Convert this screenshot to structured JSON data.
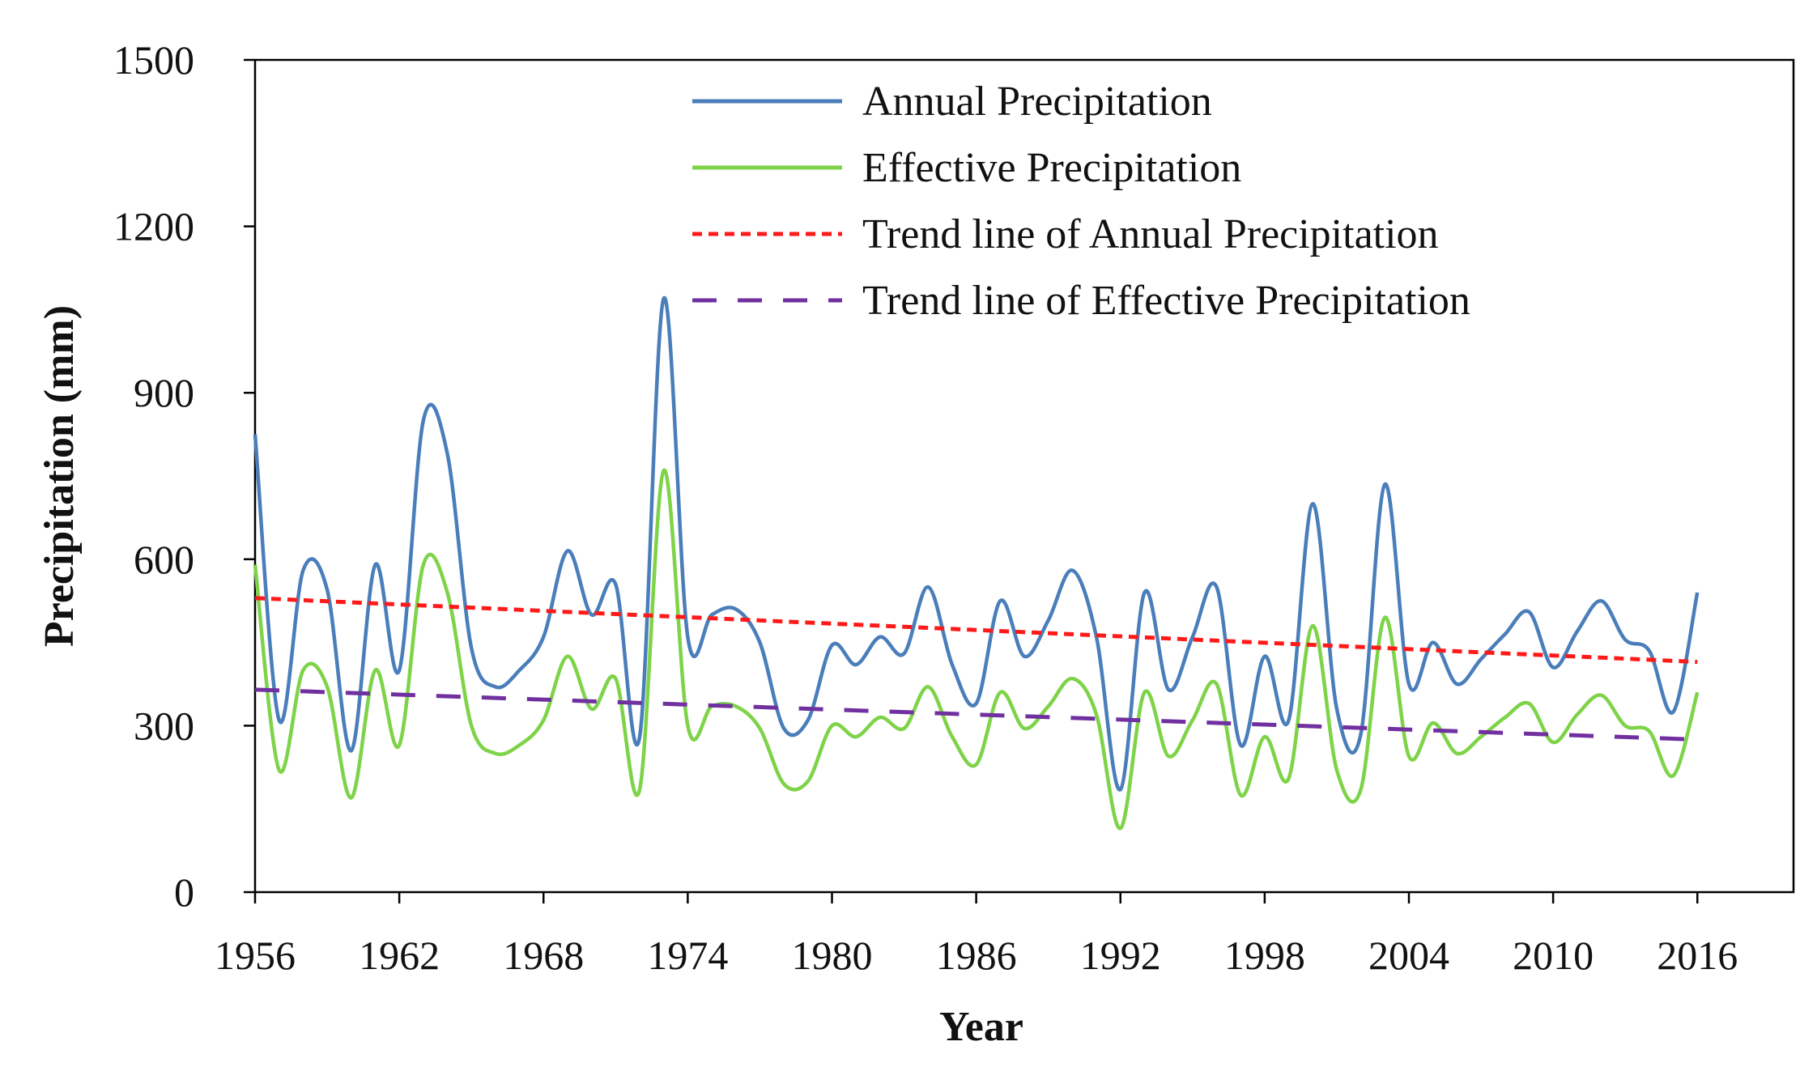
{
  "chart_data": {
    "type": "line",
    "xlabel": "Year",
    "ylabel": "Precipitation (mm)",
    "x": [
      1956,
      1957,
      1958,
      1959,
      1960,
      1961,
      1962,
      1963,
      1964,
      1965,
      1966,
      1967,
      1968,
      1969,
      1970,
      1971,
      1972,
      1973,
      1974,
      1975,
      1976,
      1977,
      1978,
      1979,
      1980,
      1981,
      1982,
      1983,
      1984,
      1985,
      1986,
      1987,
      1988,
      1989,
      1990,
      1991,
      1992,
      1993,
      1994,
      1995,
      1996,
      1997,
      1998,
      1999,
      2000,
      2001,
      2002,
      2003,
      2004,
      2005,
      2006,
      2007,
      2008,
      2009,
      2010,
      2011,
      2012,
      2013,
      2014,
      2015,
      2016
    ],
    "series": [
      {
        "name": "Annual Precipitation",
        "color": "#4a7ebb",
        "smooth": true,
        "values": [
          825,
          310,
          580,
          545,
          255,
          590,
          400,
          850,
          790,
          440,
          370,
          400,
          460,
          615,
          500,
          555,
          280,
          1070,
          460,
          500,
          510,
          450,
          295,
          310,
          445,
          410,
          460,
          430,
          550,
          410,
          340,
          525,
          425,
          490,
          580,
          460,
          185,
          540,
          365,
          460,
          550,
          265,
          425,
          310,
          700,
          330,
          285,
          735,
          375,
          450,
          375,
          420,
          465,
          505,
          405,
          470,
          525,
          455,
          435,
          325,
          540
        ]
      },
      {
        "name": "Effective Precipitation",
        "color": "#7ed348",
        "smooth": true,
        "values": [
          590,
          220,
          400,
          370,
          170,
          400,
          265,
          590,
          540,
          300,
          250,
          265,
          310,
          425,
          330,
          385,
          185,
          760,
          300,
          335,
          335,
          295,
          195,
          200,
          300,
          280,
          315,
          295,
          370,
          280,
          230,
          360,
          295,
          335,
          385,
          320,
          115,
          360,
          245,
          310,
          375,
          175,
          280,
          205,
          480,
          220,
          185,
          495,
          245,
          305,
          250,
          280,
          315,
          340,
          270,
          320,
          355,
          300,
          290,
          210,
          360
        ]
      },
      {
        "name": "Trend line of Annual Precipitation",
        "color": "#ff1a1a",
        "dash": "dotted",
        "x": [
          1956,
          2016
        ],
        "values": [
          530,
          415
        ]
      },
      {
        "name": "Trend line of Effective Precipitation",
        "color": "#7030a0",
        "dash": "dashed",
        "x": [
          1956,
          2016
        ],
        "values": [
          365,
          275
        ]
      }
    ],
    "xlim": [
      1956,
      2020
    ],
    "xticks": [
      1956,
      1962,
      1968,
      1974,
      1980,
      1986,
      1992,
      1998,
      2004,
      2010,
      2016
    ],
    "ylim": [
      0,
      1500
    ],
    "yticks": [
      0,
      300,
      600,
      900,
      1200,
      1500
    ]
  }
}
